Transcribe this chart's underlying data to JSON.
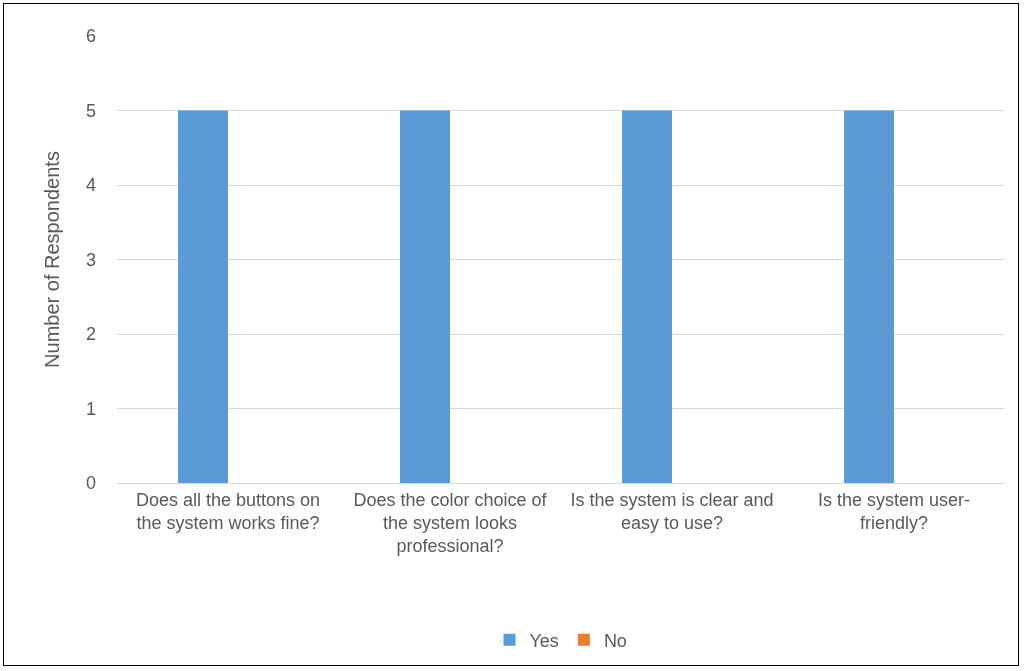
{
  "chart_data": {
    "type": "bar",
    "ylabel": "Number of Respondents",
    "categories": [
      "Does all the buttons on the system works fine?",
      "Does the color choice of the system looks professional?",
      "Is the system is clear and easy to use?",
      "Is the system user-friendly?"
    ],
    "series": [
      {
        "name": "Yes",
        "color": "#5b9bd5",
        "values": [
          5,
          5,
          5,
          5
        ]
      },
      {
        "name": "No",
        "color": "#ed7d31",
        "values": [
          0,
          0,
          0,
          0
        ]
      }
    ],
    "ylim": [
      0,
      6
    ],
    "yticks": [
      0,
      1,
      2,
      3,
      4,
      5,
      6
    ],
    "grid": "y",
    "legend": "bottom"
  }
}
